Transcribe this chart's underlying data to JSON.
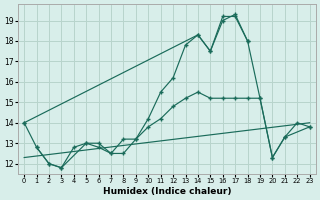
{
  "xlabel": "Humidex (Indice chaleur)",
  "bg_color": "#d8eeea",
  "grid_color": "#b8d4cc",
  "line_color": "#1a6b5a",
  "xlim": [
    -0.5,
    23.5
  ],
  "ylim": [
    11.5,
    19.8
  ],
  "xticks": [
    0,
    1,
    2,
    3,
    4,
    5,
    6,
    7,
    8,
    9,
    10,
    11,
    12,
    13,
    14,
    15,
    16,
    17,
    18,
    19,
    20,
    21,
    22,
    23
  ],
  "yticks": [
    12,
    13,
    14,
    15,
    16,
    17,
    18,
    19
  ],
  "curve1_x": [
    0,
    1,
    2,
    3,
    4,
    5,
    6,
    7,
    8,
    9,
    10,
    11,
    12,
    13,
    14,
    15,
    16,
    17,
    18
  ],
  "curve1_y": [
    14.0,
    12.8,
    12.0,
    11.8,
    12.8,
    13.0,
    12.8,
    12.5,
    13.2,
    13.2,
    14.2,
    15.5,
    16.2,
    17.8,
    18.3,
    17.5,
    19.2,
    19.2,
    18.0
  ],
  "curve2_x": [
    0,
    14,
    15,
    16,
    17,
    18,
    19,
    20,
    21,
    22,
    23
  ],
  "curve2_y": [
    14.0,
    18.3,
    17.5,
    19.0,
    19.3,
    18.0,
    15.2,
    12.3,
    13.3,
    14.0,
    13.8
  ],
  "curve3_x": [
    1,
    2,
    3,
    5,
    6,
    7,
    8,
    9,
    10,
    11,
    12,
    13,
    14,
    15,
    16,
    17,
    18,
    19,
    20,
    21,
    23
  ],
  "curve3_y": [
    12.8,
    12.0,
    11.8,
    13.0,
    13.0,
    12.5,
    12.5,
    13.2,
    13.8,
    14.2,
    14.8,
    15.2,
    15.5,
    15.2,
    15.2,
    15.2,
    15.2,
    15.2,
    12.3,
    13.3,
    13.8
  ],
  "trendline_x": [
    0,
    23
  ],
  "trendline_y": [
    12.3,
    14.0
  ]
}
